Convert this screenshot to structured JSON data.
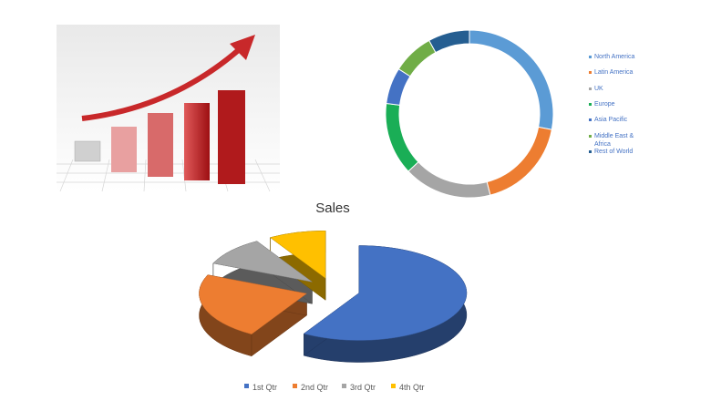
{
  "chart_data": [
    {
      "type": "donut",
      "categories": [
        "North America",
        "Latin America",
        "UK",
        "Europe",
        "Asia Pacific",
        "Middle East & Africa",
        "Rest of World"
      ],
      "values": [
        28,
        18,
        17,
        14,
        7,
        8,
        8
      ],
      "colors": [
        "#5b9bd5",
        "#ed7d31",
        "#a5a5a5",
        "#1aae56",
        "#4472c4",
        "#70ad47",
        "#255e91"
      ]
    },
    {
      "type": "pie3d",
      "title": "Sales",
      "categories": [
        "1st Qtr",
        "2nd Qtr",
        "3rd Qtr",
        "4th Qtr"
      ],
      "values": [
        8.2,
        3.2,
        1.4,
        1.2
      ],
      "colors": [
        "#4472c4",
        "#ed7d31",
        "#a5a5a5",
        "#ffc000"
      ]
    }
  ]
}
